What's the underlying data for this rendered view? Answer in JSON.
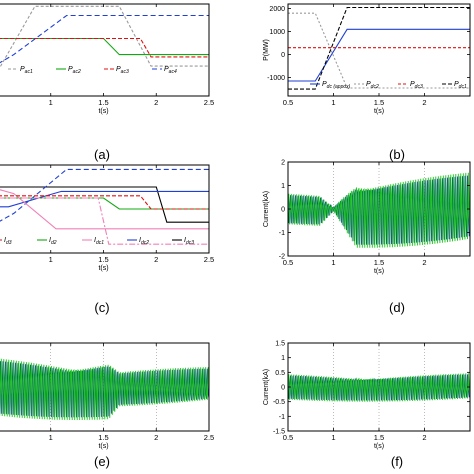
{
  "panel_labels": [
    "(a)",
    "(b)",
    "(c)",
    "(d)",
    "(e)",
    "(f)"
  ],
  "colors": {
    "black": "#000000",
    "blue": "#1f3fd6",
    "red": "#e01010",
    "green": "#12a812",
    "pink": "#f080b8",
    "grey": "#9a9a9a",
    "osc_green": "#19c819",
    "osc_blue": "#1a3aa8"
  },
  "chart_data": [
    {
      "id": "a",
      "type": "line",
      "xlabel": "t(s)",
      "ylabel": "",
      "xlim": [
        0.5,
        2.5
      ],
      "ylim": [
        -1,
        1
      ],
      "xticks": [
        "1",
        "1.5",
        "2",
        "2.5"
      ],
      "yticks": [],
      "legend": [
        "P_ac1",
        "P_ac2",
        "P_ac3",
        "P_ac4"
      ],
      "series": [
        {
          "name": "P_ac1",
          "color": "grey",
          "dash": "3,2",
          "x": [
            0.5,
            0.85,
            1.15,
            1.65,
            1.95,
            2.5
          ],
          "y": [
            -0.45,
            0.95,
            0.95,
            0.95,
            -0.35,
            -0.35
          ]
        },
        {
          "name": "P_ac2",
          "color": "green",
          "dash": "",
          "x": [
            0.5,
            1.5,
            1.65,
            2.5
          ],
          "y": [
            0.25,
            0.25,
            -0.1,
            -0.1
          ]
        },
        {
          "name": "P_ac3",
          "color": "red",
          "dash": "4,2",
          "x": [
            0.5,
            1.85,
            1.95,
            2.5
          ],
          "y": [
            0.25,
            0.25,
            -0.15,
            -0.15
          ]
        },
        {
          "name": "P_ac4",
          "color": "blue",
          "dash": "5,3",
          "x": [
            0.5,
            0.65,
            1.15,
            2.5
          ],
          "y": [
            -0.3,
            -0.1,
            0.75,
            0.75
          ]
        }
      ]
    },
    {
      "id": "b",
      "type": "line",
      "xlabel": "t(s)",
      "ylabel": "P(MW)",
      "xlim": [
        0.5,
        2.5
      ],
      "ylim": [
        -1800,
        2200
      ],
      "xticks": [
        "0.5",
        "1",
        "1.5",
        "2"
      ],
      "yticks": [
        "-1000",
        "0",
        "1000",
        "2000"
      ],
      "legend": [
        "P_dc (appox)",
        "P_dc2",
        "P_dc3",
        "P_dc1"
      ],
      "series": [
        {
          "name": "P_dc (appox)",
          "color": "blue",
          "dash": "",
          "x": [
            0.5,
            0.8,
            1.15,
            2.5
          ],
          "y": [
            -1150,
            -1150,
            1100,
            1100
          ]
        },
        {
          "name": "P_dc2",
          "color": "grey",
          "dash": "2,2",
          "x": [
            0.5,
            0.8,
            1.15,
            2.5
          ],
          "y": [
            1800,
            1800,
            -1450,
            -1450
          ]
        },
        {
          "name": "P_dc3",
          "color": "red",
          "dash": "3,2",
          "x": [
            0.5,
            2.5
          ],
          "y": [
            300,
            300
          ]
        },
        {
          "name": "P_dc1",
          "color": "black",
          "dash": "4,2",
          "x": [
            0.5,
            0.8,
            1.15,
            2.5
          ],
          "y": [
            -1500,
            -1500,
            2050,
            2050
          ]
        }
      ]
    },
    {
      "id": "c",
      "type": "line",
      "xlabel": "t(s)",
      "ylabel": "",
      "xlim": [
        0.5,
        2.5
      ],
      "ylim": [
        -1,
        1
      ],
      "xticks": [
        "1",
        "1.5",
        "2",
        "2.5"
      ],
      "yticks": [],
      "legend": [
        "I_d3",
        "I_d2",
        "I_dc1",
        "I_dc2",
        "I_dc3"
      ],
      "series": [
        {
          "name": "I_dc3",
          "color": "black",
          "dash": "",
          "x": [
            0.5,
            2.0,
            2.1,
            2.5
          ],
          "y": [
            0.5,
            0.5,
            -0.3,
            -0.3
          ]
        },
        {
          "name": "I_dc2",
          "color": "blue",
          "dash": "",
          "x": [
            0.5,
            0.6,
            1.1,
            2.5
          ],
          "y": [
            0.05,
            0.05,
            0.4,
            0.4
          ]
        },
        {
          "name": "blue dashed",
          "color": "blue",
          "dash": "5,3",
          "x": [
            0.5,
            0.65,
            1.15,
            2.5
          ],
          "y": [
            -0.3,
            -0.1,
            0.9,
            0.9
          ]
        },
        {
          "name": "I_dc1",
          "color": "pink",
          "dash": "",
          "x": [
            0.5,
            0.65,
            1.05,
            2.5
          ],
          "y": [
            0.45,
            0.35,
            -0.45,
            -0.45
          ]
        },
        {
          "name": "I_d2",
          "color": "green",
          "dash": "",
          "x": [
            0.5,
            1.5,
            1.65,
            2.5
          ],
          "y": [
            0.25,
            0.25,
            0.0,
            0.0
          ]
        },
        {
          "name": "I_d3",
          "color": "red",
          "dash": "4,2",
          "x": [
            0.5,
            1.85,
            1.95,
            2.5
          ],
          "y": [
            0.3,
            0.3,
            0.0,
            0.0
          ]
        },
        {
          "name": "pink dash-dot",
          "color": "pink",
          "dash": "6,2,2,2",
          "x": [
            0.5,
            1.45,
            1.55,
            2.5
          ],
          "y": [
            0.25,
            0.25,
            -0.8,
            -0.8
          ]
        }
      ]
    },
    {
      "id": "d",
      "type": "area",
      "xlabel": "t(s)",
      "ylabel": "Current(kA)",
      "xlim": [
        0.5,
        2.5
      ],
      "ylim": [
        -2,
        2
      ],
      "xticks": [
        "0.5",
        "1",
        "1.5",
        "2"
      ],
      "yticks": [
        "-2",
        "-1",
        "0",
        "1",
        "2"
      ],
      "envelope": {
        "x": [
          0.5,
          0.85,
          1.0,
          1.25,
          2.5
        ],
        "amplitude": [
          0.75,
          0.75,
          0.1,
          1.65,
          1.65
        ]
      }
    },
    {
      "id": "e",
      "type": "area",
      "xlabel": "t(s)",
      "ylabel": "",
      "xlim": [
        0.5,
        2.5
      ],
      "ylim": [
        -1.2,
        1.2
      ],
      "xticks": [
        "1",
        "1.5",
        "2",
        "2.5"
      ],
      "yticks": [],
      "envelope": {
        "x": [
          0.5,
          1.55,
          1.65,
          2.5
        ],
        "amplitude": [
          0.9,
          0.9,
          0.55,
          0.55
        ]
      }
    },
    {
      "id": "f",
      "type": "area",
      "xlabel": "t(s)",
      "ylabel": "Current(kA)",
      "xlim": [
        0.5,
        2.5
      ],
      "ylim": [
        -1.5,
        1.5
      ],
      "xticks": [
        "0.5",
        "1",
        "1.5",
        "2"
      ],
      "yticks": [
        "-1.5",
        "-1",
        "-0.5",
        "0",
        "0.5",
        "1",
        "1.5"
      ],
      "envelope": {
        "x": [
          0.5,
          2.5
        ],
        "amplitude": [
          0.5,
          0.5
        ]
      }
    }
  ]
}
